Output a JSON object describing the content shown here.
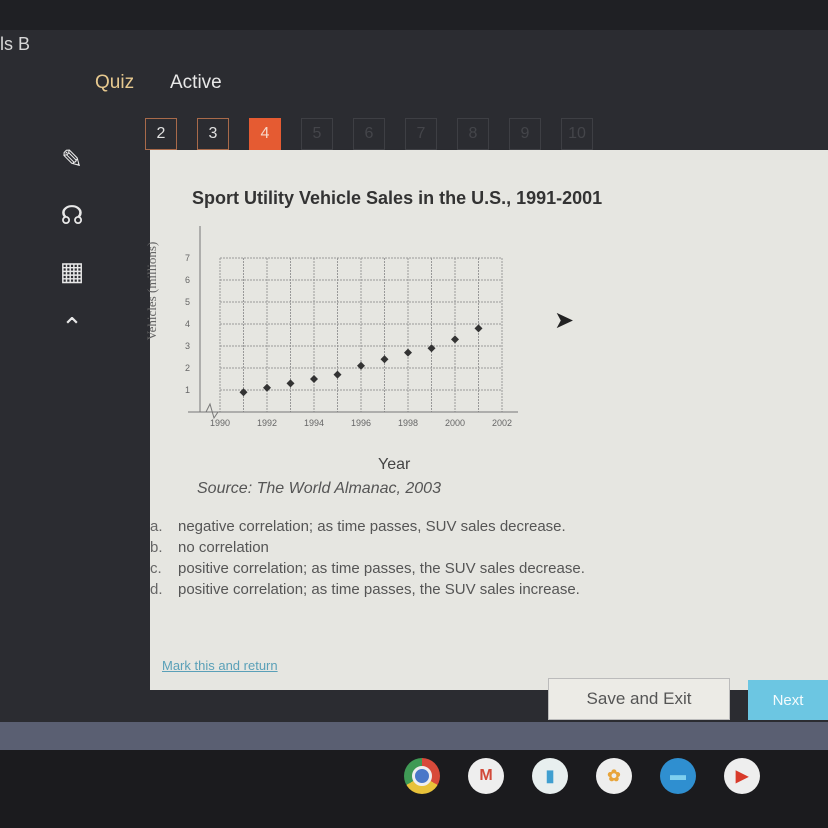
{
  "header": {
    "breadcrumb": "ls B",
    "tabs": [
      {
        "label": "Quiz"
      },
      {
        "label": "Active"
      }
    ]
  },
  "question_nav": [
    {
      "label": "2",
      "state": "answered"
    },
    {
      "label": "3",
      "state": "answered"
    },
    {
      "label": "4",
      "state": "current"
    },
    {
      "label": "5",
      "state": "locked"
    },
    {
      "label": "6",
      "state": "locked"
    },
    {
      "label": "7",
      "state": "locked"
    },
    {
      "label": "8",
      "state": "locked"
    },
    {
      "label": "9",
      "state": "locked"
    },
    {
      "label": "10",
      "state": "locked"
    }
  ],
  "sidebar": [
    "pencil-icon",
    "headphones-icon",
    "calculator-icon",
    "collapse-up-icon"
  ],
  "chart_data": {
    "type": "scatter",
    "title": "Sport Utility Vehicle Sales in the U.S., 1991-2001",
    "xlabel": "Year",
    "ylabel": "Vehicles (millions)",
    "source": "Source: The World Almanac, 2003",
    "x": [
      1991,
      1992,
      1993,
      1994,
      1995,
      1996,
      1997,
      1998,
      1999,
      2000,
      2001
    ],
    "y": [
      0.9,
      1.1,
      1.3,
      1.5,
      1.7,
      2.1,
      2.4,
      2.7,
      2.9,
      3.3,
      3.8
    ],
    "xlim": [
      1990,
      2002
    ],
    "ylim": [
      0,
      7
    ],
    "xticks": [
      "1990",
      "1992",
      "1994",
      "1996",
      "1998",
      "2000",
      "2002"
    ],
    "yticks": [
      "1",
      "2",
      "3",
      "4",
      "5",
      "6",
      "7"
    ],
    "grid": true
  },
  "choices": [
    {
      "letter": "a.",
      "text": "negative correlation; as time passes, SUV sales decrease."
    },
    {
      "letter": "b.",
      "text": "no correlation"
    },
    {
      "letter": "c.",
      "text": "positive correlation; as time passes, the SUV sales decrease."
    },
    {
      "letter": "d.",
      "text": "positive correlation; as time passes, the SUV sales increase."
    }
  ],
  "footer": {
    "mark_link": "Mark this and return",
    "save_label": "Save and Exit",
    "next_label": "Next"
  },
  "dock": [
    "chrome-icon",
    "gmail-icon",
    "docs-icon",
    "photos-icon",
    "files-icon",
    "youtube-icon"
  ],
  "colors": {
    "accent": "#e55b32",
    "next": "#6cc6e2",
    "panel": "#e6e6e1"
  }
}
